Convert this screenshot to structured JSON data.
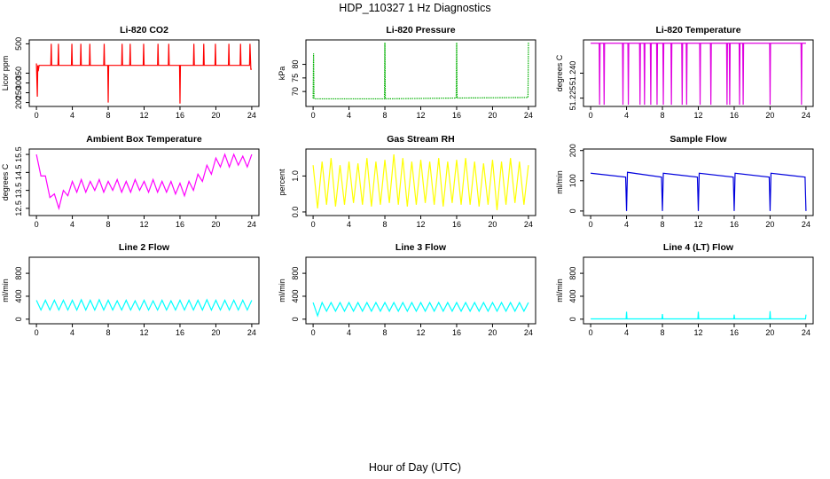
{
  "title": "HDP_110327  1 Hz Diagnostics",
  "xlabel": "Hour of Day (UTC)",
  "chart_data": [
    {
      "type": "line",
      "title": "Li-820 CO2",
      "ylabel": "Licor ppm",
      "color": "#ff0000",
      "x": [
        0,
        0.1,
        0.15,
        0.2,
        0.3,
        1.6,
        1.65,
        1.7,
        2.4,
        2.45,
        2.5,
        3.9,
        3.95,
        4,
        4.9,
        4.95,
        5,
        5.9,
        5.95,
        6,
        7.5,
        7.55,
        7.6,
        7.95,
        8,
        8.05,
        9.5,
        9.55,
        9.6,
        10.4,
        10.45,
        10.5,
        11.9,
        11.95,
        12,
        13.5,
        13.55,
        13.6,
        14.7,
        14.75,
        14.8,
        15.95,
        16,
        16.05,
        17.5,
        17.55,
        17.6,
        18.6,
        18.65,
        18.7,
        19.9,
        19.95,
        20,
        21.4,
        21.45,
        21.5,
        22.7,
        22.75,
        22.8,
        23.75,
        23.8,
        23.9,
        24
      ],
      "values": [
        400,
        230,
        390,
        360,
        390,
        390,
        500,
        390,
        390,
        500,
        390,
        390,
        500,
        390,
        390,
        500,
        390,
        390,
        500,
        390,
        390,
        500,
        390,
        390,
        200,
        390,
        390,
        500,
        390,
        390,
        500,
        390,
        390,
        500,
        390,
        390,
        500,
        390,
        390,
        500,
        390,
        390,
        195,
        390,
        390,
        500,
        390,
        390,
        500,
        390,
        390,
        500,
        390,
        390,
        500,
        390,
        390,
        500,
        390,
        390,
        500,
        370,
        370
      ],
      "xlim": [
        -0.8,
        24.8
      ],
      "xticks": [
        0,
        4,
        8,
        12,
        16,
        20,
        24
      ],
      "ylim": [
        180,
        520
      ],
      "yticks": [
        200,
        250,
        300,
        350,
        500
      ]
    },
    {
      "type": "line",
      "title": "Li-820 Pressure",
      "ylabel": "kPa",
      "color": "#00b000",
      "line_style": "dotted",
      "x": [
        0,
        0.05,
        0.1,
        0.15,
        7.95,
        8,
        8.05,
        15.95,
        16,
        16.05,
        23.95,
        24
      ],
      "values": [
        67.5,
        84,
        67.5,
        67.3,
        67.3,
        88,
        67.3,
        67.6,
        88,
        67.6,
        67.8,
        88
      ],
      "xlim": [
        -0.8,
        24.8
      ],
      "xticks": [
        0,
        4,
        8,
        12,
        16,
        20,
        24
      ],
      "ylim": [
        64.5,
        89
      ],
      "yticks": [
        70,
        75,
        80
      ]
    },
    {
      "type": "line",
      "title": "Li-820 Temperature",
      "ylabel": "degrees C",
      "color": "#e000e0",
      "x": [
        0,
        0.95,
        1,
        1.05,
        1.45,
        1.5,
        1.55,
        3.55,
        3.6,
        3.65,
        4.15,
        4.2,
        4.25,
        5.45,
        5.5,
        5.55,
        5.95,
        6,
        6.05,
        6.65,
        6.7,
        6.75,
        7.35,
        7.4,
        7.45,
        8.05,
        8.1,
        8.15,
        8.95,
        9,
        9.05,
        10.15,
        10.2,
        10.25,
        10.65,
        10.7,
        10.75,
        12.15,
        12.2,
        12.25,
        13.35,
        13.4,
        13.45,
        15.15,
        15.2,
        15.25,
        15.45,
        15.5,
        15.55,
        16.55,
        16.6,
        16.65,
        16.95,
        17,
        17.05,
        19.95,
        20,
        20.05,
        23.45,
        23.5,
        23.55,
        24
      ],
      "values": [
        51.258,
        51.258,
        51.221,
        51.258,
        51.258,
        51.221,
        51.258,
        51.258,
        51.221,
        51.258,
        51.258,
        51.221,
        51.258,
        51.258,
        51.221,
        51.258,
        51.258,
        51.221,
        51.258,
        51.258,
        51.221,
        51.258,
        51.258,
        51.221,
        51.258,
        51.258,
        51.221,
        51.258,
        51.258,
        51.221,
        51.258,
        51.258,
        51.221,
        51.258,
        51.258,
        51.221,
        51.258,
        51.258,
        51.221,
        51.258,
        51.258,
        51.221,
        51.258,
        51.258,
        51.221,
        51.258,
        51.258,
        51.221,
        51.258,
        51.258,
        51.221,
        51.258,
        51.258,
        51.221,
        51.258,
        51.258,
        51.221,
        51.258,
        51.258,
        51.221,
        51.258,
        51.258
      ],
      "xlim": [
        -0.8,
        24.8
      ],
      "xticks": [
        0,
        4,
        8,
        12,
        16,
        20,
        24
      ],
      "ylim": [
        51.22,
        51.26
      ],
      "yticks": [
        51.225,
        {
          "value": 51.24,
          "label": "51.240"
        }
      ]
    },
    {
      "type": "line",
      "title": "Ambient Box Temperature",
      "ylabel": "degrees C",
      "color": "#ff00ff",
      "x": [
        0,
        0.5,
        1,
        1.5,
        2,
        2.5,
        3,
        3.5,
        4,
        4.5,
        5,
        5.5,
        6,
        6.5,
        7,
        7.5,
        8,
        8.5,
        9,
        9.5,
        10,
        10.5,
        11,
        11.5,
        12,
        12.5,
        13,
        13.5,
        14,
        14.5,
        15,
        15.5,
        16,
        16.5,
        17,
        17.5,
        18,
        18.5,
        19,
        19.5,
        20,
        20.5,
        21,
        21.5,
        22,
        22.5,
        23,
        23.5,
        24
      ],
      "values": [
        15.5,
        14.3,
        14.3,
        13.1,
        13.3,
        12.5,
        13.5,
        13.2,
        14.0,
        13.4,
        14.1,
        13.4,
        14.0,
        13.5,
        14.1,
        13.4,
        14.0,
        13.5,
        14.1,
        13.4,
        14.0,
        13.4,
        14.1,
        13.5,
        14.0,
        13.4,
        14.1,
        13.4,
        14.0,
        13.4,
        14.0,
        13.3,
        13.9,
        13.2,
        14.0,
        13.5,
        14.4,
        14.0,
        14.9,
        14.4,
        15.3,
        14.8,
        15.5,
        14.8,
        15.5,
        14.9,
        15.4,
        14.8,
        15.5
      ],
      "xlim": [
        -0.8,
        24.8
      ],
      "xticks": [
        0,
        4,
        8,
        12,
        16,
        20,
        24
      ],
      "ylim": [
        12.1,
        15.8
      ],
      "yticks": [
        12.5,
        13.5,
        14.5,
        15.5
      ]
    },
    {
      "type": "line",
      "title": "Gas Stream RH",
      "ylabel": "percent",
      "color": "#ffff00",
      "x": [
        0,
        0.5,
        1,
        1.5,
        2,
        2.5,
        3,
        3.5,
        4,
        4.5,
        5,
        5.5,
        6,
        6.5,
        7,
        7.5,
        8,
        8.5,
        9,
        9.5,
        10,
        10.5,
        11,
        11.5,
        12,
        12.5,
        13,
        13.5,
        14,
        14.5,
        15,
        15.5,
        16,
        16.5,
        17,
        17.5,
        18,
        18.5,
        19,
        19.5,
        20,
        20.5,
        21,
        21.5,
        22,
        22.5,
        23,
        23.5,
        24
      ],
      "values": [
        1.3,
        0.1,
        1.4,
        0.2,
        1.5,
        0.15,
        1.3,
        0.2,
        1.4,
        0.25,
        1.35,
        0.2,
        1.5,
        0.15,
        1.4,
        0.2,
        1.45,
        0.25,
        1.6,
        0.2,
        1.5,
        0.15,
        1.4,
        0.2,
        1.45,
        0.25,
        1.4,
        0.2,
        1.5,
        0.15,
        1.4,
        0.25,
        1.45,
        0.2,
        1.5,
        0.2,
        1.4,
        0.15,
        1.35,
        0.2,
        1.45,
        0.05,
        1.4,
        0.2,
        1.5,
        0.25,
        1.4,
        0.2,
        1.3
      ],
      "xlim": [
        -0.8,
        24.8
      ],
      "xticks": [
        0,
        4,
        8,
        12,
        16,
        20,
        24
      ],
      "ylim": [
        -0.1,
        1.75
      ],
      "yticks": [
        {
          "value": 0,
          "label": "0.0"
        },
        {
          "value": 1,
          "label": "1.0"
        }
      ]
    },
    {
      "type": "line",
      "title": "Sample Flow",
      "ylabel": "ml/min",
      "color": "#0000dd",
      "x": [
        0,
        3.9,
        4,
        4.1,
        7.9,
        8,
        8.1,
        11.9,
        12,
        12.1,
        15.9,
        16,
        16.1,
        19.9,
        20,
        20.1,
        23.9,
        24
      ],
      "values": [
        125,
        112,
        0,
        128,
        112,
        0,
        125,
        112,
        0,
        125,
        112,
        0,
        125,
        112,
        0,
        125,
        112,
        0
      ],
      "xlim": [
        -0.8,
        24.8
      ],
      "xticks": [
        0,
        4,
        8,
        12,
        16,
        20,
        24
      ],
      "ylim": [
        -15,
        205
      ],
      "yticks": [
        0,
        100,
        200
      ]
    },
    {
      "type": "line",
      "title": "Line 2 Flow",
      "ylabel": "ml/min",
      "color": "#00ffff",
      "x": [
        0,
        0.5,
        1,
        1.5,
        2,
        2.5,
        3,
        3.5,
        4,
        4.5,
        5,
        5.5,
        6,
        6.5,
        7,
        7.5,
        8,
        8.5,
        9,
        9.5,
        10,
        10.5,
        11,
        11.5,
        12,
        12.5,
        13,
        13.5,
        14,
        14.5,
        15,
        15.5,
        16,
        16.5,
        17,
        17.5,
        18,
        18.5,
        19,
        19.5,
        20,
        20.5,
        21,
        21.5,
        22,
        22.5,
        23,
        23.5,
        24
      ],
      "values": [
        330,
        160,
        330,
        160,
        330,
        160,
        330,
        160,
        330,
        160,
        340,
        160,
        330,
        160,
        340,
        160,
        330,
        160,
        320,
        160,
        330,
        160,
        320,
        160,
        330,
        160,
        320,
        160,
        330,
        160,
        320,
        160,
        330,
        160,
        330,
        160,
        330,
        160,
        340,
        160,
        330,
        160,
        330,
        160,
        330,
        160,
        330,
        160,
        330
      ],
      "xlim": [
        -0.8,
        24.8
      ],
      "xticks": [
        0,
        4,
        8,
        12,
        16,
        20,
        24
      ],
      "ylim": [
        -80,
        1080
      ],
      "yticks": [
        0,
        400,
        800
      ]
    },
    {
      "type": "line",
      "title": "Line 3 Flow",
      "ylabel": "ml/min",
      "color": "#00ffff",
      "x": [
        0,
        0.5,
        1,
        1.5,
        2,
        2.5,
        3,
        3.5,
        4,
        4.5,
        5,
        5.5,
        6,
        6.5,
        7,
        7.5,
        8,
        8.5,
        9,
        9.5,
        10,
        10.5,
        11,
        11.5,
        12,
        12.5,
        13,
        13.5,
        14,
        14.5,
        15,
        15.5,
        16,
        16.5,
        17,
        17.5,
        18,
        18.5,
        19,
        19.5,
        20,
        20.5,
        21,
        21.5,
        22,
        22.5,
        23,
        23.5,
        24
      ],
      "values": [
        290,
        60,
        290,
        140,
        290,
        140,
        290,
        140,
        290,
        140,
        290,
        140,
        290,
        140,
        290,
        140,
        290,
        140,
        290,
        140,
        290,
        140,
        290,
        140,
        290,
        140,
        290,
        140,
        290,
        140,
        290,
        140,
        290,
        140,
        290,
        140,
        290,
        140,
        290,
        140,
        290,
        140,
        290,
        140,
        290,
        140,
        290,
        140,
        290
      ],
      "xlim": [
        -0.8,
        24.8
      ],
      "xticks": [
        0,
        4,
        8,
        12,
        16,
        20,
        24
      ],
      "ylim": [
        -80,
        1080
      ],
      "yticks": [
        0,
        400,
        800
      ]
    },
    {
      "type": "line",
      "title": "Line 4 (LT) Flow",
      "ylabel": "ml/min",
      "color": "#00ffff",
      "x": [
        0,
        3.95,
        4,
        4.05,
        7.95,
        8,
        8.05,
        11.95,
        12,
        12.05,
        15.95,
        16,
        16.05,
        19.95,
        20,
        20.05,
        23.95,
        24
      ],
      "values": [
        5,
        5,
        130,
        5,
        5,
        90,
        5,
        5,
        130,
        5,
        5,
        80,
        5,
        5,
        140,
        5,
        5,
        80
      ],
      "xlim": [
        -0.8,
        24.8
      ],
      "xticks": [
        0,
        4,
        8,
        12,
        16,
        20,
        24
      ],
      "ylim": [
        -80,
        1080
      ],
      "yticks": [
        0,
        400,
        800
      ]
    }
  ]
}
